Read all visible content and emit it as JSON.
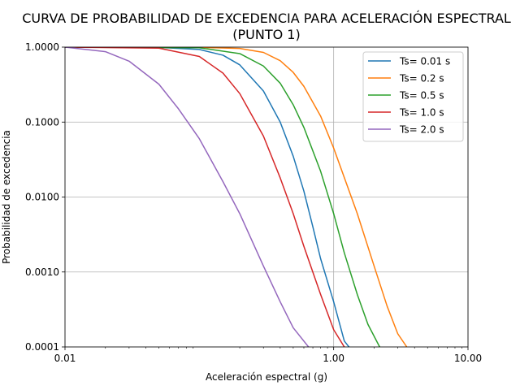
{
  "chart_data": {
    "type": "line",
    "title_line1": "CURVA DE PROBABILIDAD DE EXCEDENCIA PARA ACELERACIÓN ESPECTRAL",
    "title_line2": "(PUNTO 1)",
    "xlabel": "Aceleración espectral (g)",
    "ylabel": "Probabilidad de excedencia",
    "xscale": "log",
    "yscale": "log",
    "xlim": [
      0.01,
      10
    ],
    "ylim": [
      0.0001,
      1
    ],
    "grid": true,
    "legend_position": "top-right",
    "xticks": [
      {
        "value": 0.01,
        "label": "0.01"
      },
      {
        "value": 1,
        "label": "1.00"
      },
      {
        "value": 10,
        "label": "10.00"
      }
    ],
    "yticks": [
      {
        "value": 0.0001,
        "label": "0.0001"
      },
      {
        "value": 0.001,
        "label": "0.0010"
      },
      {
        "value": 0.01,
        "label": "0.0100"
      },
      {
        "value": 0.1,
        "label": "0.1000"
      },
      {
        "value": 1,
        "label": "1.0000"
      }
    ],
    "series": [
      {
        "name": "Ts= 0.01 s",
        "color": "#1f77b4",
        "x": [
          0.01,
          0.05,
          0.1,
          0.15,
          0.2,
          0.3,
          0.4,
          0.5,
          0.6,
          0.7,
          0.8,
          1.0,
          1.2,
          1.3
        ],
        "y": [
          1.0,
          0.99,
          0.93,
          0.78,
          0.58,
          0.26,
          0.1,
          0.035,
          0.012,
          0.004,
          0.0015,
          0.0004,
          0.00012,
          0.0001
        ]
      },
      {
        "name": "Ts= 0.2 s",
        "color": "#ff7f0e",
        "x": [
          0.01,
          0.1,
          0.2,
          0.3,
          0.4,
          0.5,
          0.6,
          0.8,
          1.0,
          1.5,
          2.0,
          2.5,
          3.0,
          3.5
        ],
        "y": [
          1.0,
          0.995,
          0.96,
          0.85,
          0.66,
          0.46,
          0.3,
          0.12,
          0.045,
          0.006,
          0.0012,
          0.00035,
          0.00015,
          0.0001
        ]
      },
      {
        "name": "Ts= 0.5 s",
        "color": "#2ca02c",
        "x": [
          0.01,
          0.1,
          0.2,
          0.3,
          0.4,
          0.5,
          0.6,
          0.8,
          1.0,
          1.2,
          1.5,
          1.8,
          2.2
        ],
        "y": [
          1.0,
          0.98,
          0.82,
          0.56,
          0.33,
          0.17,
          0.085,
          0.022,
          0.006,
          0.0018,
          0.0005,
          0.0002,
          0.0001
        ]
      },
      {
        "name": "Ts= 1.0 s",
        "color": "#d62728",
        "x": [
          0.01,
          0.05,
          0.1,
          0.15,
          0.2,
          0.3,
          0.4,
          0.5,
          0.6,
          0.8,
          1.0,
          1.2
        ],
        "y": [
          1.0,
          0.97,
          0.75,
          0.45,
          0.24,
          0.065,
          0.018,
          0.006,
          0.0022,
          0.0005,
          0.00017,
          0.0001
        ]
      },
      {
        "name": "Ts= 2.0 s",
        "color": "#9467bd",
        "x": [
          0.01,
          0.02,
          0.03,
          0.05,
          0.07,
          0.1,
          0.15,
          0.2,
          0.3,
          0.4,
          0.5,
          0.65
        ],
        "y": [
          1.0,
          0.87,
          0.65,
          0.32,
          0.15,
          0.06,
          0.016,
          0.006,
          0.0012,
          0.0004,
          0.00018,
          0.0001
        ]
      }
    ]
  }
}
